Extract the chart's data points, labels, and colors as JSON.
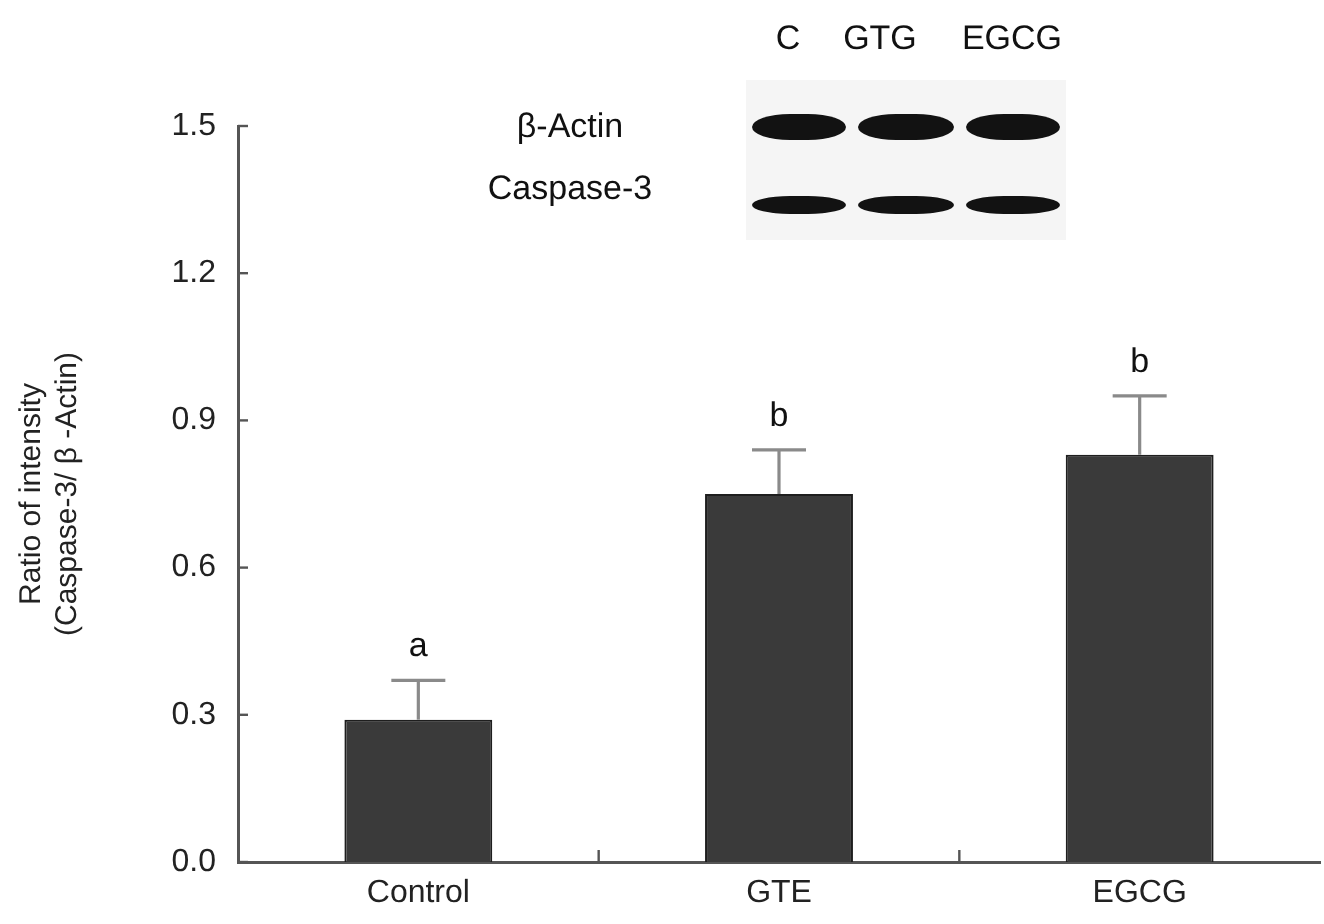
{
  "chart_data": {
    "type": "bar",
    "categories": [
      "Control",
      "GTE",
      "EGCG"
    ],
    "values": [
      0.29,
      0.75,
      0.83
    ],
    "errors": [
      [
        0.29,
        0.37
      ],
      [
        0.75,
        0.84
      ],
      [
        0.83,
        0.95
      ]
    ],
    "color": "#3a3a3a",
    "ylabel": "Ratio of intensity\n(Caspase-3/ β -Actin)",
    "ylim": [
      0,
      1.5
    ],
    "yticks": [
      {
        "value": 0,
        "label": "0.0"
      },
      0.3,
      0.6,
      0.9,
      1.2,
      1.5
    ],
    "annotations": [
      "C",
      "GTG",
      "EGCG",
      "β-Actin",
      "Caspase-3",
      {
        "text": "a",
        "x": "Control",
        "y": 0.37
      },
      {
        "text": "b",
        "x": "GTE",
        "y": 0.84
      },
      {
        "text": "b",
        "x": "EGCG",
        "y": 0.95
      }
    ]
  }
}
